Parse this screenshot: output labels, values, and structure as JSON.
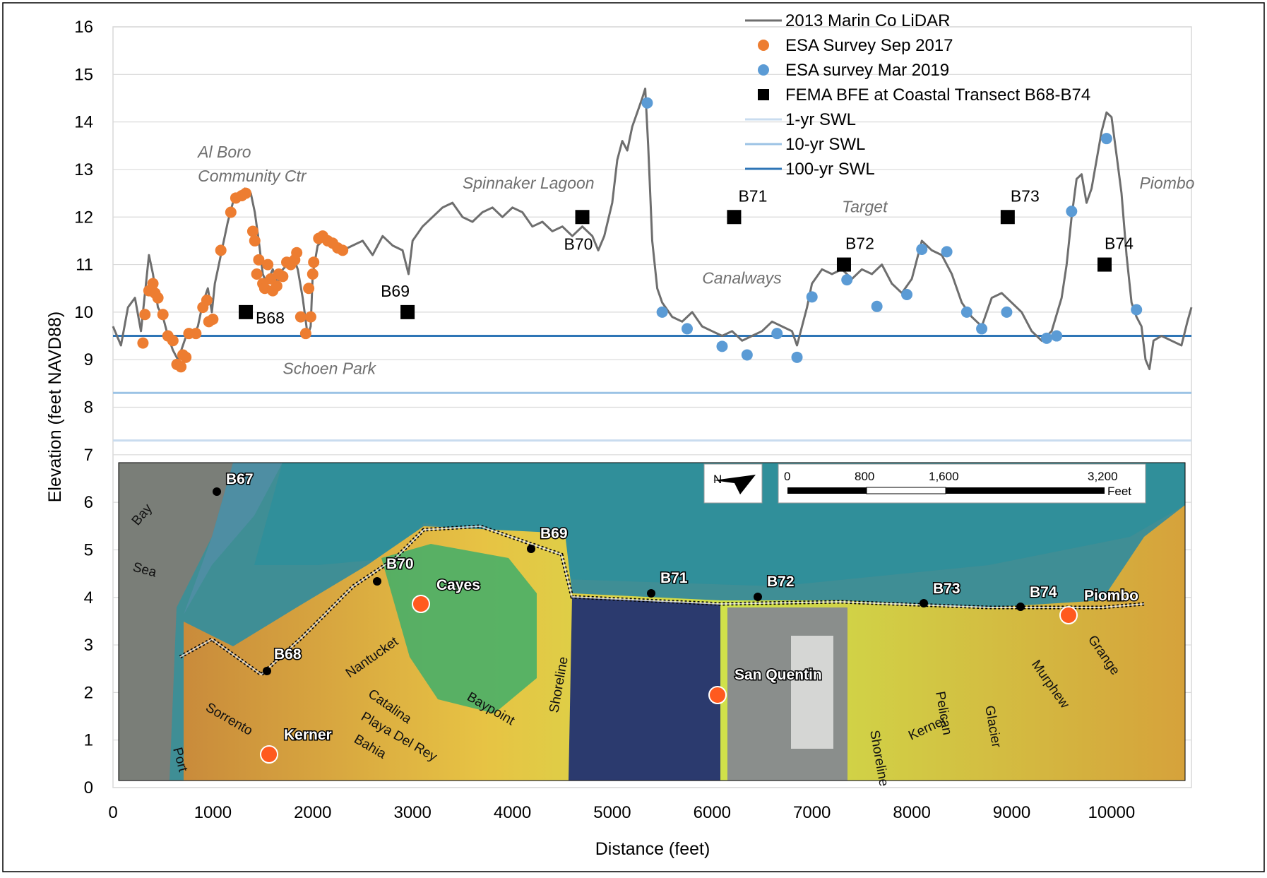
{
  "chart_data": {
    "type": "line",
    "xlabel": "Distance (feet)",
    "ylabel": "Elevation (feet NAVD88)",
    "xlim": [
      0,
      10800
    ],
    "ylim": [
      0,
      16
    ],
    "x_ticks": [
      0,
      1000,
      2000,
      3000,
      4000,
      5000,
      6000,
      7000,
      8000,
      9000,
      10000
    ],
    "y_ticks": [
      0,
      1,
      2,
      3,
      4,
      5,
      6,
      7,
      8,
      9,
      10,
      11,
      12,
      13,
      14,
      15,
      16
    ],
    "grid": "horizontal",
    "legend_position": "top-right",
    "colors": {
      "lidar": "#6e6e6e",
      "sep2017": "#ed7d31",
      "mar2019": "#5b9bd5",
      "fema": "#000000",
      "swl1": "#c9dcef",
      "swl10": "#9cc3e5",
      "swl100": "#2e75b6"
    },
    "series": [
      {
        "name": "2013 Marin Co LiDAR",
        "kind": "line",
        "points": [
          [
            0,
            9.7
          ],
          [
            80,
            9.3
          ],
          [
            150,
            10.1
          ],
          [
            220,
            10.3
          ],
          [
            280,
            9.6
          ],
          [
            330,
            10.6
          ],
          [
            360,
            11.2
          ],
          [
            400,
            10.8
          ],
          [
            450,
            10.1
          ],
          [
            500,
            9.9
          ],
          [
            550,
            9.5
          ],
          [
            600,
            9.2
          ],
          [
            650,
            9.0
          ],
          [
            700,
            9.3
          ],
          [
            750,
            9.6
          ],
          [
            800,
            9.5
          ],
          [
            850,
            9.7
          ],
          [
            900,
            10.2
          ],
          [
            950,
            10.5
          ],
          [
            990,
            10.0
          ],
          [
            1020,
            10.6
          ],
          [
            1060,
            11.0
          ],
          [
            1100,
            11.4
          ],
          [
            1150,
            11.9
          ],
          [
            1200,
            12.3
          ],
          [
            1260,
            12.5
          ],
          [
            1320,
            12.6
          ],
          [
            1380,
            12.5
          ],
          [
            1420,
            12.1
          ],
          [
            1460,
            11.5
          ],
          [
            1500,
            10.8
          ],
          [
            1540,
            10.6
          ],
          [
            1600,
            10.9
          ],
          [
            1650,
            10.6
          ],
          [
            1700,
            10.9
          ],
          [
            1750,
            11.0
          ],
          [
            1800,
            11.2
          ],
          [
            1850,
            10.9
          ],
          [
            1900,
            10.3
          ],
          [
            1950,
            9.5
          ],
          [
            1980,
            9.7
          ],
          [
            2000,
            10.8
          ],
          [
            2050,
            11.4
          ],
          [
            2100,
            11.5
          ],
          [
            2200,
            11.4
          ],
          [
            2300,
            11.3
          ],
          [
            2400,
            11.4
          ],
          [
            2500,
            11.5
          ],
          [
            2600,
            11.2
          ],
          [
            2700,
            11.6
          ],
          [
            2800,
            11.4
          ],
          [
            2900,
            11.3
          ],
          [
            2960,
            10.8
          ],
          [
            3000,
            11.5
          ],
          [
            3100,
            11.8
          ],
          [
            3200,
            12.0
          ],
          [
            3300,
            12.2
          ],
          [
            3400,
            12.3
          ],
          [
            3500,
            12.0
          ],
          [
            3600,
            11.9
          ],
          [
            3700,
            12.1
          ],
          [
            3800,
            12.2
          ],
          [
            3900,
            12.0
          ],
          [
            4000,
            12.2
          ],
          [
            4100,
            12.1
          ],
          [
            4200,
            11.8
          ],
          [
            4300,
            11.9
          ],
          [
            4400,
            11.7
          ],
          [
            4500,
            11.8
          ],
          [
            4600,
            11.6
          ],
          [
            4700,
            11.8
          ],
          [
            4800,
            11.6
          ],
          [
            4860,
            11.3
          ],
          [
            4920,
            11.6
          ],
          [
            5000,
            12.3
          ],
          [
            5050,
            13.2
          ],
          [
            5100,
            13.6
          ],
          [
            5150,
            13.4
          ],
          [
            5200,
            13.9
          ],
          [
            5250,
            14.2
          ],
          [
            5300,
            14.5
          ],
          [
            5330,
            14.7
          ],
          [
            5360,
            13.5
          ],
          [
            5400,
            11.5
          ],
          [
            5450,
            10.5
          ],
          [
            5500,
            10.2
          ],
          [
            5600,
            9.9
          ],
          [
            5700,
            9.8
          ],
          [
            5800,
            10.0
          ],
          [
            5900,
            9.7
          ],
          [
            6000,
            9.6
          ],
          [
            6100,
            9.5
          ],
          [
            6200,
            9.6
          ],
          [
            6300,
            9.4
          ],
          [
            6400,
            9.5
          ],
          [
            6500,
            9.6
          ],
          [
            6600,
            9.8
          ],
          [
            6700,
            9.7
          ],
          [
            6800,
            9.6
          ],
          [
            6850,
            9.3
          ],
          [
            6900,
            9.7
          ],
          [
            6950,
            10.1
          ],
          [
            7000,
            10.6
          ],
          [
            7100,
            10.9
          ],
          [
            7200,
            10.8
          ],
          [
            7300,
            10.9
          ],
          [
            7400,
            10.7
          ],
          [
            7500,
            10.9
          ],
          [
            7600,
            10.8
          ],
          [
            7700,
            11.0
          ],
          [
            7800,
            10.6
          ],
          [
            7900,
            10.4
          ],
          [
            8000,
            10.7
          ],
          [
            8100,
            11.5
          ],
          [
            8200,
            11.3
          ],
          [
            8300,
            11.2
          ],
          [
            8400,
            10.8
          ],
          [
            8500,
            10.2
          ],
          [
            8600,
            9.9
          ],
          [
            8700,
            9.7
          ],
          [
            8800,
            10.3
          ],
          [
            8900,
            10.4
          ],
          [
            9000,
            10.2
          ],
          [
            9100,
            10.0
          ],
          [
            9200,
            9.6
          ],
          [
            9300,
            9.4
          ],
          [
            9400,
            9.6
          ],
          [
            9500,
            10.3
          ],
          [
            9550,
            11.0
          ],
          [
            9600,
            12.0
          ],
          [
            9650,
            12.8
          ],
          [
            9700,
            12.9
          ],
          [
            9750,
            12.3
          ],
          [
            9800,
            12.6
          ],
          [
            9850,
            13.2
          ],
          [
            9900,
            13.8
          ],
          [
            9950,
            14.2
          ],
          [
            10000,
            14.1
          ],
          [
            10050,
            13.3
          ],
          [
            10100,
            12.5
          ],
          [
            10150,
            11.2
          ],
          [
            10200,
            10.2
          ],
          [
            10250,
            9.9
          ],
          [
            10300,
            9.7
          ],
          [
            10340,
            9.0
          ],
          [
            10380,
            8.8
          ],
          [
            10420,
            9.4
          ],
          [
            10500,
            9.5
          ],
          [
            10600,
            9.4
          ],
          [
            10700,
            9.3
          ],
          [
            10760,
            9.8
          ],
          [
            10800,
            10.1
          ]
        ]
      },
      {
        "name": "ESA Survey Sep 2017",
        "kind": "points",
        "points": [
          [
            300,
            9.35
          ],
          [
            320,
            9.95
          ],
          [
            360,
            10.45
          ],
          [
            400,
            10.6
          ],
          [
            420,
            10.4
          ],
          [
            450,
            10.3
          ],
          [
            500,
            9.95
          ],
          [
            550,
            9.5
          ],
          [
            600,
            9.4
          ],
          [
            640,
            8.9
          ],
          [
            680,
            8.85
          ],
          [
            700,
            9.1
          ],
          [
            730,
            9.05
          ],
          [
            760,
            9.55
          ],
          [
            830,
            9.55
          ],
          [
            900,
            10.1
          ],
          [
            940,
            10.25
          ],
          [
            960,
            9.8
          ],
          [
            1000,
            9.85
          ],
          [
            1080,
            11.3
          ],
          [
            1180,
            12.1
          ],
          [
            1230,
            12.4
          ],
          [
            1290,
            12.45
          ],
          [
            1330,
            12.5
          ],
          [
            1400,
            11.7
          ],
          [
            1420,
            11.5
          ],
          [
            1460,
            11.1
          ],
          [
            1440,
            10.8
          ],
          [
            1500,
            10.6
          ],
          [
            1520,
            10.5
          ],
          [
            1550,
            11.0
          ],
          [
            1580,
            10.7
          ],
          [
            1600,
            10.45
          ],
          [
            1640,
            10.55
          ],
          [
            1660,
            10.8
          ],
          [
            1700,
            10.75
          ],
          [
            1740,
            11.05
          ],
          [
            1780,
            11.0
          ],
          [
            1820,
            11.1
          ],
          [
            1840,
            11.25
          ],
          [
            1880,
            9.9
          ],
          [
            1930,
            9.55
          ],
          [
            1960,
            10.5
          ],
          [
            1980,
            9.9
          ],
          [
            2000,
            10.8
          ],
          [
            2010,
            11.05
          ],
          [
            2060,
            11.55
          ],
          [
            2100,
            11.6
          ],
          [
            2150,
            11.5
          ],
          [
            2200,
            11.45
          ],
          [
            2250,
            11.35
          ],
          [
            2300,
            11.3
          ]
        ]
      },
      {
        "name": "ESA survey Mar 2019",
        "kind": "points",
        "points": [
          [
            5350,
            14.4
          ],
          [
            5500,
            10.0
          ],
          [
            5750,
            9.65
          ],
          [
            6100,
            9.28
          ],
          [
            6350,
            9.1
          ],
          [
            6650,
            9.55
          ],
          [
            6850,
            9.05
          ],
          [
            7000,
            10.32
          ],
          [
            7350,
            10.68
          ],
          [
            7650,
            10.12
          ],
          [
            7950,
            10.37
          ],
          [
            8100,
            11.32
          ],
          [
            8350,
            11.27
          ],
          [
            8550,
            10.0
          ],
          [
            8700,
            9.65
          ],
          [
            8950,
            10.0
          ],
          [
            9350,
            9.45
          ],
          [
            9450,
            9.5
          ],
          [
            9600,
            12.12
          ],
          [
            9950,
            13.65
          ],
          [
            10250,
            10.05
          ]
        ]
      },
      {
        "name": "FEMA BFE at Coastal Transect B68-B74",
        "kind": "squares",
        "points": [
          [
            1330,
            10.0
          ],
          [
            2950,
            10.0
          ],
          [
            4700,
            12.0
          ],
          [
            6220,
            12.0
          ],
          [
            7320,
            11.0
          ],
          [
            8960,
            12.0
          ],
          [
            9930,
            11.0
          ]
        ],
        "labels": [
          "B68",
          "B69",
          "B70",
          "B71",
          "B72",
          "B73",
          "B74"
        ]
      },
      {
        "name": "1-yr SWL",
        "kind": "hline",
        "y": 7.3
      },
      {
        "name": "10-yr SWL",
        "kind": "hline",
        "y": 8.3
      },
      {
        "name": "100-yr SWL",
        "kind": "hline",
        "y": 9.5
      }
    ],
    "annotations": [
      {
        "text": "Al Boro",
        "x": 850,
        "y": 13.25
      },
      {
        "text": "Community Ctr",
        "x": 850,
        "y": 12.75
      },
      {
        "text": "Spinnaker Lagoon",
        "x": 3500,
        "y": 12.6
      },
      {
        "text": "Target",
        "x": 7300,
        "y": 12.1
      },
      {
        "text": "Piombo",
        "x": 10280,
        "y": 12.6
      },
      {
        "text": "Canalways",
        "x": 5900,
        "y": 10.6
      },
      {
        "text": "Schoen Park",
        "x": 1700,
        "y": 8.7
      }
    ]
  },
  "map": {
    "labels": [
      "B67",
      "B68",
      "B69",
      "B70",
      "B71",
      "B72",
      "B73",
      "B74",
      "Cayes",
      "Piombo",
      "San Quentin",
      "Kerner"
    ],
    "streets": [
      "Bay",
      "Sea",
      "Nantucket",
      "Catalina",
      "Playa Del Rey",
      "Bahia",
      "Baypoint",
      "Shoreline",
      "Sorrento",
      "Port",
      "Kerner",
      "Shoreline",
      "Pelican",
      "Glacier",
      "Murphew",
      "Grange",
      "Pelican"
    ],
    "scale": {
      "ticks": [
        "0",
        "800",
        "1,600",
        "3,200"
      ],
      "unit": "Feet"
    },
    "north_symbol": "N"
  }
}
